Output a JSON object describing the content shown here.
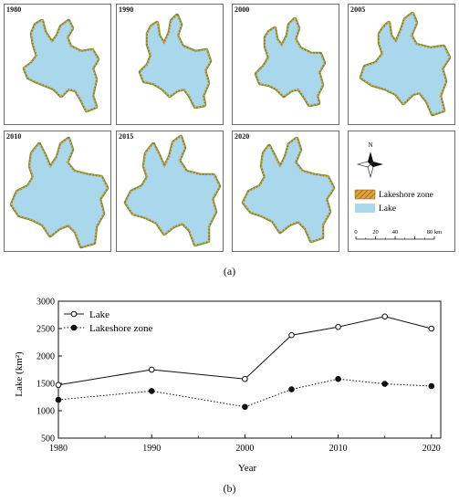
{
  "maps": {
    "panels": [
      {
        "year": "1980",
        "shape": "a"
      },
      {
        "year": "1990",
        "shape": "b"
      },
      {
        "year": "2000",
        "shape": "c"
      },
      {
        "year": "2005",
        "shape": "d"
      },
      {
        "year": "2010",
        "shape": "e"
      },
      {
        "year": "2015",
        "shape": "f"
      },
      {
        "year": "2020",
        "shape": "g"
      }
    ],
    "legend": {
      "north": "N",
      "items": [
        {
          "label": "Lakeshore zone",
          "color": "#e2a23a"
        },
        {
          "label": "Lake",
          "color": "#a9d8ec"
        }
      ],
      "scale_ticks": [
        "0",
        "20",
        "40",
        "80 km"
      ]
    }
  },
  "captions": {
    "a": "(a)",
    "b": "(b)"
  },
  "colors": {
    "lake": "#a9d8ec",
    "shore": "#6a8f3c",
    "shore_accent": "#e2a23a",
    "shore_pink": "#d98fc5"
  },
  "chart_data": {
    "type": "line",
    "x": [
      1980,
      1990,
      2000,
      2005,
      2010,
      2015,
      2020
    ],
    "xticks": [
      "1980",
      "1990",
      "2000",
      "2010",
      "2020"
    ],
    "yticks": [
      "500",
      "1000",
      "1500",
      "2000",
      "2500",
      "3000"
    ],
    "xlim": [
      1980,
      2021
    ],
    "ylim": [
      500,
      3000
    ],
    "xlabel": "Year",
    "ylabel": "Lake (km²)",
    "legend_position": "top-left",
    "series": [
      {
        "name": "Lake",
        "style": "solid",
        "marker": "open-circle",
        "values": [
          1470,
          1750,
          1580,
          2380,
          2530,
          2720,
          2500
        ]
      },
      {
        "name": "Lakeshore zone",
        "style": "dotted",
        "marker": "filled-circle",
        "values": [
          1200,
          1360,
          1070,
          1390,
          1580,
          1490,
          1450
        ]
      }
    ]
  }
}
